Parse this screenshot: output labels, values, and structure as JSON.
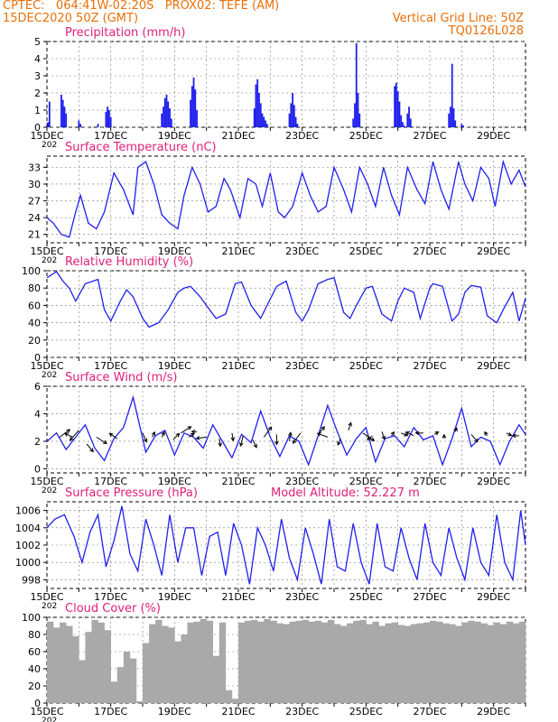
{
  "header": {
    "line1": "CPTEC:   064:41W-02:20S   PROX02: TEFE (AM)",
    "line2": "15DEC2020 50Z (GMT)",
    "right1": "Vertical Grid Line: 50Z",
    "right2": "TQ0126L028",
    "model_altitude": "Model Altitude: 52.227  m"
  },
  "colors": {
    "header": "#e8700a",
    "title": "#e0207a",
    "line": "#2020ee",
    "bar": "#2020ee",
    "cloud": "#a9a9a9",
    "arrow": "#000000"
  },
  "x_axis": {
    "tick_labels": [
      "15DEC",
      "17DEC",
      "19DEC",
      "21DEC",
      "23DEC",
      "25DEC",
      "27DEC",
      "29DEC"
    ],
    "tick_days": [
      0,
      2,
      4,
      6,
      8,
      10,
      12,
      14
    ],
    "range_days": [
      0,
      15
    ],
    "year_stub": "202"
  },
  "chart_data": [
    {
      "type": "bar",
      "title": "Precipitation (mm/h)",
      "xlabel": "",
      "ylabel": "",
      "ylim": [
        0,
        5
      ],
      "yticks": [
        0,
        1,
        2,
        3,
        4,
        5
      ],
      "grid": true,
      "x": [
        0.03,
        0.08,
        0.45,
        0.5,
        0.55,
        0.6,
        1.0,
        1.05,
        1.6,
        1.85,
        1.9,
        1.95,
        2.0,
        3.6,
        3.65,
        3.7,
        3.75,
        3.8,
        3.85,
        3.9,
        4.5,
        4.55,
        4.6,
        4.65,
        4.7,
        6.5,
        6.55,
        6.6,
        6.65,
        6.7,
        6.75,
        6.8,
        6.85,
        6.9,
        7.6,
        7.65,
        7.7,
        7.75,
        7.8,
        7.85,
        9.6,
        9.65,
        9.7,
        9.75,
        9.8,
        10.9,
        10.95,
        11.0,
        11.05,
        11.1,
        11.15,
        11.2,
        11.3,
        11.35,
        11.4,
        12.6,
        12.65,
        12.7,
        12.75,
        12.8,
        13.0,
        13.05
      ],
      "values": [
        0.3,
        1.5,
        1.9,
        1.6,
        1.2,
        0.8,
        0.4,
        0.2,
        0.2,
        0.9,
        1.2,
        1.0,
        0.6,
        0.8,
        1.2,
        1.7,
        1.9,
        1.5,
        1.1,
        0.5,
        1.6,
        2.4,
        2.9,
        2.2,
        1.0,
        1.1,
        2.5,
        2.8,
        2.0,
        1.4,
        0.8,
        0.6,
        0.4,
        0.2,
        0.8,
        1.4,
        2.0,
        1.3,
        0.6,
        0.2,
        0.5,
        1.4,
        4.9,
        2.0,
        0.8,
        2.4,
        2.6,
        2.1,
        1.5,
        0.7,
        0.3,
        0.1,
        0.8,
        1.2,
        0.5,
        0.8,
        1.2,
        3.7,
        1.1,
        0.4,
        0.2,
        0.1
      ]
    },
    {
      "type": "line",
      "title": "Surface Temperature (nC)",
      "xlabel": "",
      "ylabel": "",
      "ylim": [
        19.5,
        35
      ],
      "yticks": [
        21,
        24,
        27,
        30,
        33
      ],
      "grid": true,
      "x": [
        0,
        0.2,
        0.45,
        0.7,
        0.9,
        1.05,
        1.3,
        1.55,
        1.8,
        2.1,
        2.4,
        2.7,
        2.85,
        3.1,
        3.35,
        3.6,
        3.85,
        4.1,
        4.3,
        4.55,
        4.8,
        5.05,
        5.3,
        5.55,
        5.75,
        6.05,
        6.3,
        6.55,
        6.75,
        7.0,
        7.25,
        7.45,
        7.7,
        8.0,
        8.25,
        8.5,
        8.75,
        9.0,
        9.3,
        9.55,
        9.8,
        10.05,
        10.3,
        10.55,
        10.8,
        11.05,
        11.3,
        11.6,
        11.85,
        12.1,
        12.35,
        12.6,
        12.9,
        13.1,
        13.35,
        13.6,
        13.85,
        14.05,
        14.3,
        14.55,
        14.8,
        15.0
      ],
      "values": [
        24,
        23,
        21,
        20.5,
        25,
        28,
        23,
        22,
        25,
        32,
        29,
        24.5,
        33,
        34,
        30,
        24.5,
        23,
        22,
        28,
        33,
        30,
        25,
        26,
        31,
        29,
        24,
        31,
        30,
        26,
        32,
        25,
        24,
        26,
        32,
        28,
        25,
        26,
        33,
        29,
        25,
        33,
        30,
        26,
        33,
        28,
        24.5,
        33,
        29,
        26.5,
        34,
        29,
        25.5,
        34,
        30,
        27,
        33,
        31,
        26,
        34,
        30,
        32.5,
        29.5
      ]
    },
    {
      "type": "line",
      "title": "Relative Humidity (%)",
      "xlabel": "",
      "ylabel": "",
      "ylim": [
        0,
        100
      ],
      "yticks": [
        0,
        20,
        40,
        60,
        80,
        100
      ],
      "grid": true,
      "x": [
        0,
        0.3,
        0.5,
        0.7,
        0.9,
        1.2,
        1.6,
        1.8,
        2.0,
        2.3,
        2.5,
        2.7,
        3.0,
        3.2,
        3.5,
        3.8,
        4.1,
        4.3,
        4.5,
        4.8,
        5.1,
        5.3,
        5.6,
        5.9,
        6.1,
        6.4,
        6.7,
        6.9,
        7.2,
        7.5,
        7.8,
        8.0,
        8.2,
        8.5,
        8.8,
        9.0,
        9.3,
        9.5,
        9.7,
        10.0,
        10.2,
        10.5,
        10.8,
        11.0,
        11.2,
        11.5,
        11.7,
        12.0,
        12.1,
        12.4,
        12.7,
        12.9,
        13.1,
        13.3,
        13.6,
        13.8,
        14.1,
        14.3,
        14.6,
        14.8,
        15.0
      ],
      "values": [
        92,
        99,
        88,
        80,
        65,
        85,
        90,
        55,
        42,
        65,
        78,
        70,
        45,
        35,
        40,
        55,
        75,
        80,
        82,
        70,
        55,
        45,
        50,
        85,
        87,
        60,
        45,
        60,
        82,
        88,
        52,
        42,
        55,
        85,
        90,
        92,
        52,
        45,
        60,
        80,
        82,
        50,
        42,
        65,
        80,
        75,
        45,
        80,
        85,
        82,
        42,
        50,
        75,
        83,
        81,
        48,
        40,
        55,
        75,
        42,
        68
      ]
    },
    {
      "type": "line",
      "title": "Surface Wind (m/s)",
      "xlabel": "",
      "ylabel": "",
      "ylim": [
        -0.3,
        6
      ],
      "yticks": [
        0,
        2,
        4,
        6
      ],
      "grid": true,
      "x": [
        0,
        0.3,
        0.6,
        0.9,
        1.2,
        1.5,
        1.8,
        2.1,
        2.4,
        2.7,
        2.9,
        3.1,
        3.4,
        3.7,
        4.0,
        4.3,
        4.6,
        4.9,
        5.2,
        5.5,
        5.8,
        6.1,
        6.4,
        6.7,
        7.0,
        7.3,
        7.6,
        7.9,
        8.2,
        8.5,
        8.8,
        9.1,
        9.4,
        9.7,
        10.0,
        10.3,
        10.6,
        10.9,
        11.2,
        11.5,
        11.8,
        12.1,
        12.4,
        12.7,
        13.0,
        13.3,
        13.6,
        13.9,
        14.2,
        14.5,
        14.8,
        15.0
      ],
      "values": [
        2.0,
        2.6,
        1.4,
        2.3,
        3.2,
        1.5,
        0.6,
        2.2,
        3.0,
        5.2,
        3.2,
        1.2,
        2.4,
        2.8,
        1.0,
        2.6,
        2.3,
        1.5,
        3.2,
        2.0,
        0.8,
        2.5,
        1.9,
        4.2,
        2.3,
        0.9,
        2.4,
        2.0,
        0.3,
        2.4,
        4.6,
        2.7,
        1.0,
        2.2,
        3.0,
        0.5,
        2.2,
        2.4,
        1.6,
        3.0,
        2.1,
        2.4,
        0.3,
        2.2,
        4.4,
        1.6,
        2.3,
        2.0,
        0.3,
        2.0,
        3.2,
        2.5
      ],
      "arrows": {
        "x": [
          0.4,
          0.8,
          1.0,
          1.25,
          1.55,
          2.2,
          3.0,
          3.3,
          3.6,
          3.95,
          4.2,
          4.45,
          4.7,
          5.0,
          5.4,
          5.8,
          6.15,
          6.45,
          6.8,
          7.2,
          7.6,
          7.95,
          8.5,
          8.8,
          9.2,
          9.45,
          9.9,
          10.2,
          10.5,
          10.8,
          11.1,
          11.5,
          11.8,
          12.15,
          12.45,
          12.8,
          13.3,
          13.8,
          14.4,
          14.8
        ],
        "y": [
          2.3,
          2.3,
          2.8,
          1.8,
          2.3,
          2.2,
          2.6,
          2.3,
          2.3,
          2.1,
          2.6,
          2.3,
          2.7,
          2.3,
          2.2,
          2.6,
          2.4,
          2.1,
          2.3,
          2.5,
          2.0,
          2.6,
          2.5,
          2.3,
          2.2,
          2.8,
          2.6,
          2.4,
          2.7,
          2.4,
          2.6,
          2.4,
          2.6,
          2.5,
          2.2,
          2.7,
          2.5,
          2.4,
          2.6,
          2.4
        ],
        "u": [
          0.8,
          -0.6,
          -0.7,
          0.5,
          0.8,
          -0.6,
          0.3,
          0.2,
          0.2,
          0.5,
          0.8,
          0.4,
          -0.4,
          -0.8,
          0.1,
          0.1,
          -0.2,
          0.3,
          0.6,
          0.0,
          0.1,
          -0.6,
          0.5,
          -0.8,
          -0.2,
          0.2,
          0.9,
          -0.4,
          0.2,
          0.2,
          0.5,
          -0.6,
          -0.6,
          0.3,
          0.0,
          0.1,
          0.5,
          -0.2,
          0.4,
          -0.5
        ],
        "v": [
          0.6,
          0.3,
          -0.8,
          -0.6,
          -0.5,
          0.4,
          -0.7,
          0.4,
          0.4,
          0.5,
          0.5,
          0.3,
          0.0,
          -0.1,
          -0.6,
          -0.6,
          -0.8,
          -0.6,
          0.8,
          -0.8,
          0.7,
          -0.8,
          0.6,
          0.3,
          -0.5,
          0.6,
          -0.6,
          -0.3,
          -0.6,
          0.3,
          -0.2,
          0.3,
          0.0,
          0.2,
          0.3,
          0.3,
          -0.6,
          0.3,
          -0.2,
          0.0
        ]
      }
    },
    {
      "type": "line",
      "title": "Surface Pressure (hPa)",
      "xlabel": "",
      "ylabel": "",
      "ylim": [
        997,
        1007
      ],
      "yticks": [
        998,
        1000,
        1002,
        1004,
        1006
      ],
      "grid": true,
      "x": [
        0,
        0.25,
        0.55,
        0.85,
        1.1,
        1.35,
        1.6,
        1.85,
        2.1,
        2.35,
        2.6,
        2.85,
        3.1,
        3.35,
        3.6,
        3.85,
        4.1,
        4.35,
        4.6,
        4.85,
        5.1,
        5.35,
        5.6,
        5.85,
        6.1,
        6.35,
        6.6,
        6.85,
        7.1,
        7.35,
        7.6,
        7.85,
        8.1,
        8.35,
        8.6,
        8.85,
        9.1,
        9.35,
        9.6,
        9.85,
        10.1,
        10.35,
        10.6,
        10.85,
        11.1,
        11.35,
        11.6,
        11.85,
        12.1,
        12.35,
        12.6,
        12.85,
        13.1,
        13.35,
        13.6,
        13.85,
        14.1,
        14.35,
        14.6,
        14.85,
        15.0
      ],
      "values": [
        1004,
        1005,
        1005.5,
        1003,
        1000,
        1003.5,
        1005.5,
        999.5,
        1002.5,
        1006.5,
        1001,
        999,
        1005,
        1002,
        998.5,
        1005.5,
        1000,
        1004,
        1004,
        998.5,
        1003,
        1003.5,
        998.5,
        1004.5,
        1002,
        997.5,
        1004,
        1002,
        999,
        1005,
        1000.5,
        998,
        1004,
        1001,
        997.5,
        1005,
        999.5,
        999,
        1004.5,
        1000,
        997.5,
        1004.5,
        999.5,
        999,
        1004,
        1000.5,
        998,
        1004.5,
        1000,
        998.5,
        1004,
        1000.5,
        998,
        1004,
        1000,
        998.5,
        1005.5,
        1000,
        998,
        1006,
        1002
      ]
    },
    {
      "type": "bar",
      "title": "Cloud Cover (%)",
      "xlabel": "",
      "ylabel": "",
      "ylim": [
        0,
        100
      ],
      "yticks": [
        0,
        20,
        40,
        60,
        80,
        100
      ],
      "grid": true,
      "x": [
        0.1,
        0.3,
        0.5,
        0.7,
        0.9,
        1.1,
        1.3,
        1.5,
        1.7,
        1.9,
        2.1,
        2.3,
        2.5,
        2.7,
        2.9,
        3.1,
        3.3,
        3.5,
        3.7,
        3.9,
        4.1,
        4.3,
        4.5,
        4.7,
        4.9,
        5.1,
        5.3,
        5.5,
        5.7,
        5.9,
        6.1,
        6.3,
        6.5,
        6.7,
        6.9,
        7.1,
        7.3,
        7.5,
        7.7,
        7.9,
        8.1,
        8.3,
        8.5,
        8.7,
        8.9,
        9.1,
        9.3,
        9.5,
        9.7,
        9.9,
        10.1,
        10.3,
        10.5,
        10.7,
        10.9,
        11.1,
        11.3,
        11.5,
        11.7,
        11.9,
        12.1,
        12.3,
        12.5,
        12.7,
        12.9,
        13.1,
        13.3,
        13.5,
        13.7,
        13.9,
        14.1,
        14.3,
        14.5,
        14.7,
        14.9
      ],
      "values": [
        95,
        88,
        94,
        90,
        78,
        50,
        83,
        97,
        94,
        85,
        25,
        42,
        60,
        52,
        2,
        70,
        92,
        97,
        90,
        88,
        72,
        80,
        94,
        95,
        98,
        96,
        55,
        94,
        15,
        5,
        94,
        96,
        97,
        95,
        98,
        96,
        93,
        92,
        95,
        96,
        97,
        95,
        96,
        94,
        97,
        92,
        90,
        93,
        96,
        97,
        92,
        95,
        90,
        93,
        94,
        91,
        90,
        92,
        93,
        94,
        96,
        95,
        93,
        92,
        90,
        94,
        96,
        95,
        93,
        91,
        94,
        92,
        95,
        93,
        95
      ]
    }
  ]
}
